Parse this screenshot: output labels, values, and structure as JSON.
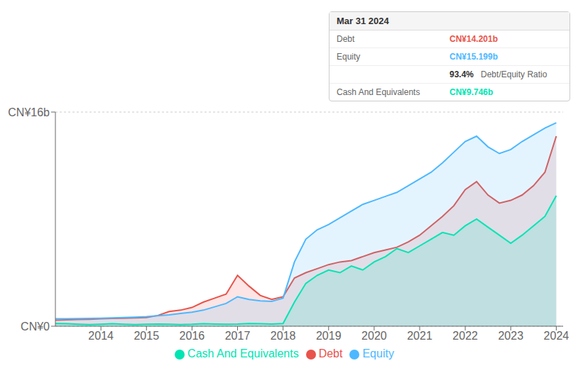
{
  "chart_data": {
    "type": "area",
    "x": [
      2013.0,
      2013.25,
      2013.5,
      2013.75,
      2014.0,
      2014.25,
      2014.5,
      2014.75,
      2015.0,
      2015.25,
      2015.5,
      2015.75,
      2016.0,
      2016.25,
      2016.5,
      2016.75,
      2017.0,
      2017.25,
      2017.5,
      2017.75,
      2018.0,
      2018.25,
      2018.5,
      2018.75,
      2019.0,
      2019.25,
      2019.5,
      2019.75,
      2020.0,
      2020.25,
      2020.5,
      2020.75,
      2021.0,
      2021.25,
      2021.5,
      2021.75,
      2022.0,
      2022.25,
      2022.5,
      2022.75,
      2023.0,
      2023.25,
      2023.5,
      2023.75,
      2024.0
    ],
    "series": [
      {
        "name": "Debt",
        "color": "#e8534a",
        "values": [
          0.45,
          0.48,
          0.5,
          0.52,
          0.55,
          0.58,
          0.6,
          0.62,
          0.65,
          0.8,
          1.1,
          1.2,
          1.4,
          1.8,
          2.1,
          2.4,
          3.8,
          3.0,
          2.3,
          2.0,
          2.2,
          3.6,
          4.0,
          4.3,
          4.6,
          4.8,
          4.9,
          5.2,
          5.5,
          5.7,
          5.9,
          6.3,
          6.8,
          7.5,
          8.2,
          9.0,
          10.2,
          10.8,
          9.8,
          9.2,
          9.4,
          9.8,
          10.5,
          11.5,
          14.2
        ]
      },
      {
        "name": "Equity",
        "color": "#4db8ff",
        "values": [
          0.55,
          0.56,
          0.57,
          0.58,
          0.6,
          0.62,
          0.65,
          0.68,
          0.72,
          0.78,
          0.85,
          0.95,
          1.05,
          1.2,
          1.45,
          1.7,
          2.2,
          2.0,
          1.9,
          1.85,
          2.1,
          4.8,
          6.5,
          7.2,
          7.6,
          8.1,
          8.6,
          9.1,
          9.4,
          9.7,
          10.0,
          10.5,
          11.0,
          11.5,
          12.2,
          13.0,
          13.8,
          14.2,
          13.4,
          12.9,
          13.2,
          13.8,
          14.3,
          14.8,
          15.2
        ]
      },
      {
        "name": "Cash And Equivalents",
        "color": "#00e5b3",
        "values": [
          0.2,
          0.18,
          0.15,
          0.12,
          0.15,
          0.18,
          0.15,
          0.12,
          0.14,
          0.16,
          0.14,
          0.12,
          0.14,
          0.18,
          0.16,
          0.14,
          0.16,
          0.2,
          0.18,
          0.16,
          0.2,
          1.8,
          3.2,
          3.8,
          4.2,
          4.0,
          4.5,
          4.2,
          4.8,
          5.2,
          5.8,
          5.5,
          6.0,
          6.5,
          7.0,
          6.8,
          7.5,
          8.0,
          7.4,
          6.8,
          6.2,
          6.8,
          7.5,
          8.2,
          9.75
        ]
      }
    ],
    "xlim": [
      2013.0,
      2024.15
    ],
    "xticks": [
      2014,
      2015,
      2016,
      2017,
      2018,
      2019,
      2020,
      2021,
      2022,
      2023,
      2024
    ],
    "ylim": [
      0,
      16
    ],
    "yticks": [
      {
        "value": 0,
        "label": "CN¥0"
      },
      {
        "value": 16,
        "label": "CN¥16b"
      }
    ],
    "grid": true,
    "legend": "bottom",
    "annotations": [
      {
        "text": "Mar 31 2024"
      },
      {
        "label": "Debt",
        "value": 14.201,
        "value_label": "CN¥14.201b"
      },
      {
        "label": "Equity",
        "value": 15.199,
        "value_label": "CN¥15.199b"
      },
      {
        "label": "Debt/Equity Ratio",
        "value": 93.4,
        "value_label": "93.4%"
      },
      {
        "label": "Cash And Equivalents",
        "value": 9.746,
        "value_label": "CN¥9.746b"
      }
    ]
  }
}
